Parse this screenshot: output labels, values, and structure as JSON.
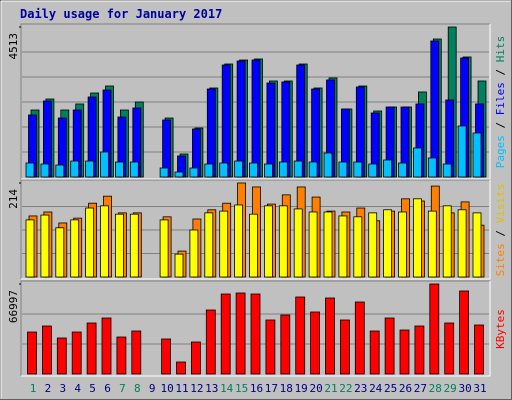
{
  "chart_data": [
    {
      "type": "bar",
      "title": "Daily usage for January 2017",
      "categories": [
        "1",
        "2",
        "3",
        "4",
        "5",
        "6",
        "7",
        "8",
        "9",
        "10",
        "11",
        "12",
        "13",
        "14",
        "15",
        "16",
        "17",
        "18",
        "19",
        "20",
        "21",
        "22",
        "23",
        "24",
        "25",
        "26",
        "27",
        "28",
        "29",
        "30",
        "31"
      ],
      "category_colors": [
        "#00805c",
        "#00007f",
        "#00007f",
        "#00007f",
        "#00007f",
        "#00007f",
        "#00805c",
        "#00805c",
        "#00007f",
        "#00007f",
        "#00007f",
        "#00007f",
        "#00007f",
        "#00805c",
        "#00805c",
        "#00007f",
        "#00007f",
        "#00007f",
        "#00007f",
        "#00007f",
        "#00805c",
        "#00805c",
        "#00007f",
        "#00007f",
        "#00007f",
        "#00007f",
        "#00007f",
        "#00805c",
        "#00805c",
        "#00007f",
        "#00007f"
      ],
      "legend_separator": " / ",
      "ylim": [
        0,
        4513
      ],
      "yticks": [
        4513
      ],
      "grid": true,
      "series": [
        {
          "name": "Pages",
          "color": "#00c0ff",
          "values": [
            421,
            391,
            361,
            481,
            481,
            752,
            451,
            451,
            0,
            271,
            150,
            271,
            391,
            421,
            481,
            421,
            391,
            451,
            481,
            451,
            722,
            451,
            451,
            391,
            512,
            421,
            873,
            572,
            391,
            1535,
            1324
          ]
        },
        {
          "name": "Files",
          "color": "#0000ff",
          "values": [
            1866,
            2287,
            1775,
            2016,
            2407,
            2618,
            1805,
            2076,
            0,
            1715,
            632,
            1444,
            2648,
            3370,
            3490,
            3521,
            2828,
            2859,
            3370,
            2648,
            2919,
            2046,
            2708,
            1926,
            2106,
            2106,
            2197,
            4092,
            2317,
            3581,
            2197
          ]
        },
        {
          "name": "Hits",
          "color": "#00805c",
          "values": [
            2016,
            2347,
            2016,
            2197,
            2527,
            2738,
            2016,
            2257,
            0,
            1775,
            692,
            1474,
            2678,
            3400,
            3520,
            3551,
            2889,
            2889,
            3400,
            2678,
            2979,
            2046,
            2738,
            1986,
            2106,
            2106,
            2558,
            4152,
            4513,
            3611,
            2889
          ]
        }
      ]
    },
    {
      "type": "bar",
      "ylim": [
        0,
        214
      ],
      "yticks": [
        214
      ],
      "grid": true,
      "series": [
        {
          "name": "Sites",
          "color": "#ff8000",
          "values": [
            139,
            148,
            123,
            134,
            168,
            184,
            146,
            146,
            0,
            137,
            59,
            132,
            153,
            168,
            214,
            205,
            166,
            187,
            205,
            182,
            150,
            148,
            157,
            128,
            150,
            178,
            173,
            207,
            146,
            171,
            118
          ]
        },
        {
          "name": "Visits",
          "color": "#ffff00",
          "values": [
            130,
            141,
            112,
            130,
            157,
            162,
            143,
            143,
            0,
            130,
            52,
            107,
            146,
            150,
            164,
            143,
            162,
            162,
            155,
            148,
            148,
            139,
            137,
            146,
            153,
            148,
            178,
            150,
            162,
            153,
            146
          ]
        }
      ]
    },
    {
      "type": "bar",
      "ylim": [
        0,
        66997
      ],
      "yticks": [
        66997
      ],
      "grid": true,
      "series": [
        {
          "name": "KBytes",
          "color": "#ff0000",
          "values": [
            31265,
            35731,
            26798,
            31265,
            37964,
            41686,
            27543,
            32009,
            0,
            26054,
            8933,
            23821,
            47642,
            59552,
            60296,
            59552,
            40198,
            43920,
            57319,
            46153,
            56574,
            40198,
            53597,
            32009,
            41686,
            32754,
            35731,
            66997,
            37964,
            61785,
            36476
          ]
        }
      ]
    }
  ]
}
